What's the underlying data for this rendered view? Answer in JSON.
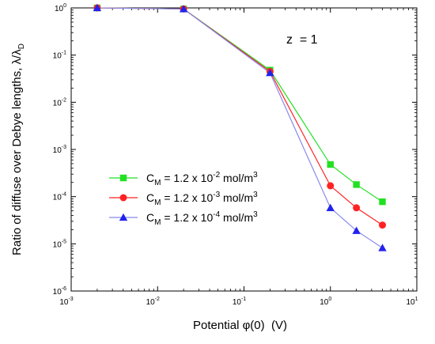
{
  "chart_data": {
    "type": "line",
    "xscale": "log",
    "yscale": "log",
    "xlim": [
      0.001,
      10
    ],
    "ylim": [
      1e-06,
      1
    ],
    "xlabel": "Potential φ(0)  (V)",
    "ylabel": "Ratio of diffuse over Debye lengths, λ/λ",
    "ylabel_subscript": "D",
    "annotation": "z  = 1",
    "legend_position": "center-left",
    "grid": false,
    "x_ticks": [
      {
        "mantissa": "10",
        "exp": "-3",
        "value": 0.001
      },
      {
        "mantissa": "10",
        "exp": "-2",
        "value": 0.01
      },
      {
        "mantissa": "10",
        "exp": "-1",
        "value": 0.1
      },
      {
        "mantissa": "10",
        "exp": "0",
        "value": 1
      },
      {
        "mantissa": "10",
        "exp": "1",
        "value": 10
      }
    ],
    "y_ticks": [
      {
        "mantissa": "10",
        "exp": "-6",
        "value": 1e-06
      },
      {
        "mantissa": "10",
        "exp": "-5",
        "value": 1e-05
      },
      {
        "mantissa": "10",
        "exp": "-4",
        "value": 0.0001
      },
      {
        "mantissa": "10",
        "exp": "-3",
        "value": 0.001
      },
      {
        "mantissa": "10",
        "exp": "-2",
        "value": 0.01
      },
      {
        "mantissa": "10",
        "exp": "-1",
        "value": 0.1
      },
      {
        "mantissa": "10",
        "exp": "0",
        "value": 1
      }
    ],
    "series": [
      {
        "name": "C_M = 1.2 x 10^-2 mol/m^3",
        "label_main": "C",
        "label_sub": "M",
        "label_mid": " = 1.2 x 10",
        "label_exp": "-2",
        "label_unit": " mol/m",
        "label_unit_exp": "3",
        "color": "#22e022",
        "marker": "square",
        "x": [
          0.002,
          0.02,
          0.2,
          1,
          2,
          4
        ],
        "y": [
          1.0,
          0.95,
          0.048,
          0.00048,
          0.00018,
          7.8e-05
        ]
      },
      {
        "name": "C_M = 1.2 x 10^-3 mol/m^3",
        "label_main": "C",
        "label_sub": "M",
        "label_mid": " = 1.2 x 10",
        "label_exp": "-3",
        "label_unit": " mol/m",
        "label_unit_exp": "3",
        "color": "#ff2222",
        "marker": "circle",
        "x": [
          0.002,
          0.02,
          0.2,
          1,
          2,
          4
        ],
        "y": [
          1.0,
          0.95,
          0.045,
          0.00017,
          5.8e-05,
          2.5e-05
        ]
      },
      {
        "name": "C_M = 1.2 x 10^-4 mol/m^3",
        "label_main": "C",
        "label_sub": "M",
        "label_mid": " = 1.2 x 10",
        "label_exp": "-4",
        "label_unit": " mol/m",
        "label_unit_exp": "3",
        "color": "#2222ee",
        "line_color": "#8888ee",
        "marker": "triangle",
        "x": [
          0.002,
          0.02,
          0.2,
          1,
          2,
          4
        ],
        "y": [
          1.0,
          0.95,
          0.042,
          5.8e-05,
          1.9e-05,
          8.2e-06
        ]
      }
    ]
  }
}
